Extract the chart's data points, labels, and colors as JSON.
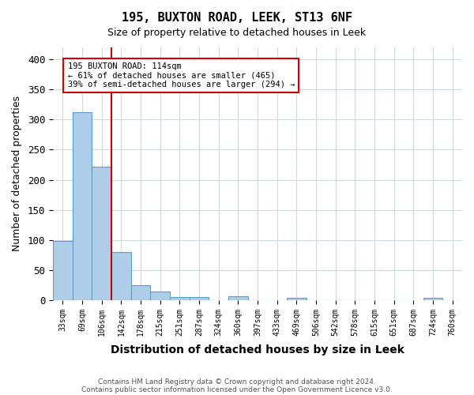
{
  "title": "195, BUXTON ROAD, LEEK, ST13 6NF",
  "subtitle": "Size of property relative to detached houses in Leek",
  "xlabel": "Distribution of detached houses by size in Leek",
  "ylabel": "Number of detached properties",
  "footnote1": "Contains HM Land Registry data © Crown copyright and database right 2024.",
  "footnote2": "Contains public sector information licensed under the Open Government Licence v3.0.",
  "bins": [
    "33sqm",
    "69sqm",
    "106sqm",
    "142sqm",
    "178sqm",
    "215sqm",
    "251sqm",
    "287sqm",
    "324sqm",
    "360sqm",
    "397sqm",
    "433sqm",
    "469sqm",
    "506sqm",
    "542sqm",
    "578sqm",
    "615sqm",
    "651sqm",
    "687sqm",
    "724sqm",
    "760sqm"
  ],
  "values": [
    99,
    312,
    222,
    80,
    25,
    14,
    5,
    5,
    0,
    6,
    0,
    0,
    4,
    0,
    0,
    0,
    0,
    0,
    0,
    4,
    0
  ],
  "bar_color": "#aecde8",
  "bar_edge_color": "#5a9fc9",
  "red_line_bin_index": 2,
  "red_line_color": "#cc0000",
  "annotation_line1": "195 BUXTON ROAD: 114sqm",
  "annotation_line2": "← 61% of detached houses are smaller (465)",
  "annotation_line3": "39% of semi-detached houses are larger (294) →",
  "annotation_box_color": "#cc0000",
  "ylim": [
    0,
    420
  ],
  "yticks": [
    0,
    50,
    100,
    150,
    200,
    250,
    300,
    350,
    400
  ],
  "background_color": "#ffffff",
  "grid_color": "#d0d8e0"
}
